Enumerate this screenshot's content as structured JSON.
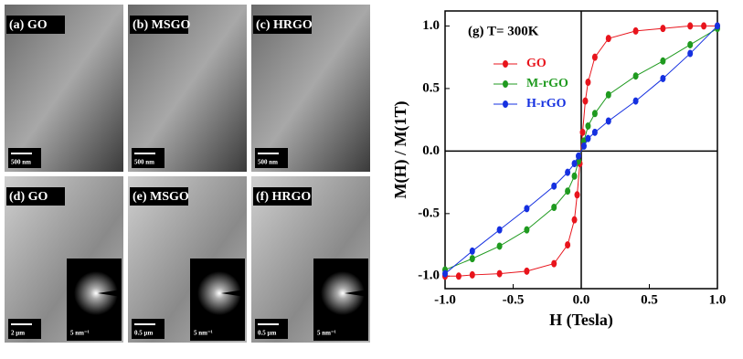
{
  "panels": [
    {
      "label": "(a) GO",
      "scale_bar": "500 nm"
    },
    {
      "label": "(b) MSGO",
      "scale_bar": "500 nm"
    },
    {
      "label": "(c) HRGO",
      "scale_bar": "500 nm"
    },
    {
      "label": "(d) GO",
      "scale_bar": "2 μm",
      "inset": "5 nm⁻¹"
    },
    {
      "label": "(e) MSGO",
      "scale_bar": "0.5 μm",
      "inset": "5 nm⁻¹"
    },
    {
      "label": "(f) HRGO",
      "scale_bar": "0.5 μm",
      "inset": "5 nm⁻¹"
    }
  ],
  "chart_data": {
    "type": "line",
    "annotation": "(g) T= 300K",
    "x_label": "H (Tesla)",
    "y_label": "M(H) / M(1T)",
    "xlim": [
      -1,
      1
    ],
    "ylim": [
      -1.1,
      1.12
    ],
    "xticks": [
      {
        "value": -1,
        "label": "-1.0"
      },
      {
        "value": -0.5,
        "label": "-0.5"
      },
      {
        "value": 0,
        "label": "0.0"
      },
      {
        "value": 0.5,
        "label": "0.5"
      },
      {
        "value": 1,
        "label": "1.0"
      }
    ],
    "yticks": [
      {
        "value": -1,
        "label": "-1.0"
      },
      {
        "value": -0.5,
        "label": "-0.5"
      },
      {
        "value": 0,
        "label": "0.0"
      },
      {
        "value": 0.5,
        "label": "0.5"
      },
      {
        "value": 1,
        "label": "1.0"
      }
    ],
    "series": [
      {
        "name": "GO",
        "color": "#e8141c",
        "x": [
          -1,
          -0.9,
          -0.8,
          -0.6,
          -0.4,
          -0.2,
          -0.1,
          -0.05,
          -0.03,
          -0.01,
          0.01,
          0.03,
          0.05,
          0.1,
          0.2,
          0.4,
          0.6,
          0.8,
          0.9,
          1
        ],
        "values": [
          -1,
          -1,
          -0.99,
          -0.98,
          -0.96,
          -0.9,
          -0.75,
          -0.55,
          -0.35,
          -0.1,
          0.15,
          0.4,
          0.55,
          0.75,
          0.9,
          0.96,
          0.98,
          1,
          1,
          1
        ]
      },
      {
        "name": "M-rGO",
        "color": "#1f9a1f",
        "x": [
          -1,
          -0.8,
          -0.6,
          -0.4,
          -0.2,
          -0.1,
          -0.05,
          -0.02,
          0.02,
          0.05,
          0.1,
          0.2,
          0.4,
          0.6,
          0.8,
          1
        ],
        "values": [
          -0.95,
          -0.86,
          -0.76,
          -0.63,
          -0.45,
          -0.32,
          -0.2,
          -0.08,
          0.08,
          0.2,
          0.3,
          0.45,
          0.6,
          0.72,
          0.85,
          0.98
        ]
      },
      {
        "name": "H-rGO",
        "color": "#1530e0",
        "x": [
          -1,
          -0.8,
          -0.6,
          -0.4,
          -0.2,
          -0.1,
          -0.05,
          -0.02,
          0.02,
          0.05,
          0.1,
          0.2,
          0.4,
          0.6,
          0.8,
          1
        ],
        "values": [
          -0.98,
          -0.8,
          -0.63,
          -0.46,
          -0.28,
          -0.17,
          -0.1,
          -0.04,
          0.04,
          0.1,
          0.15,
          0.24,
          0.4,
          0.58,
          0.78,
          1
        ]
      }
    ]
  }
}
